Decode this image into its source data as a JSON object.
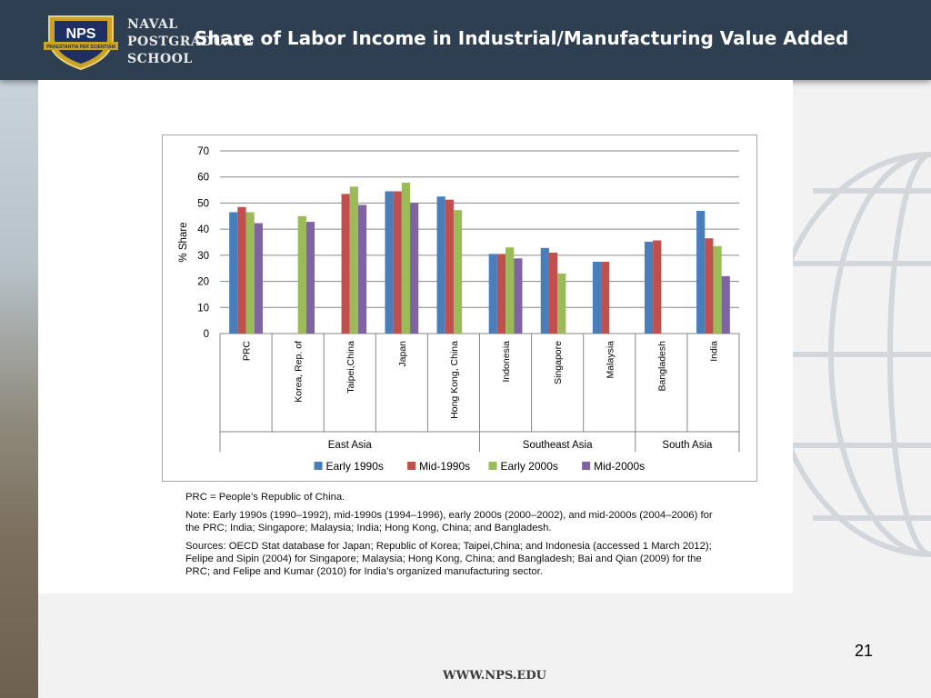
{
  "header": {
    "logo_text": "NPS",
    "motto": "PRAESTANTIA PER SCIENTIAM",
    "org_lines": [
      "NAVAL",
      "POSTGRADUATE",
      "SCHOOL"
    ],
    "title": "Share of Labor Income in Industrial/Manufacturing Value Added"
  },
  "chart_data": {
    "type": "bar",
    "ylabel": "% Share",
    "ylim": [
      0,
      70
    ],
    "yticks": [
      0,
      10,
      20,
      30,
      40,
      50,
      60,
      70
    ],
    "grid": true,
    "legend_position": "bottom",
    "categories": [
      "PRC",
      "Korea, Rep. of",
      "Taipei,China",
      "Japan",
      "Hong Kong, China",
      "Indonesia",
      "Singapore",
      "Malaysia",
      "Bangladesh",
      "India"
    ],
    "groups": [
      {
        "name": "East Asia",
        "start": 0,
        "end": 4
      },
      {
        "name": "Southeast Asia",
        "start": 5,
        "end": 7
      },
      {
        "name": "South Asia",
        "start": 8,
        "end": 9
      }
    ],
    "series": [
      {
        "name": "Early 1990s",
        "color": "#4a7ebb",
        "values": [
          46.5,
          null,
          null,
          54.5,
          52.5,
          30.5,
          32.8,
          27.5,
          35.2,
          47
        ]
      },
      {
        "name": "Mid-1990s",
        "color": "#c0504d",
        "values": [
          48.5,
          null,
          53.5,
          54.5,
          51.3,
          30.5,
          31,
          27.5,
          35.7,
          36.5
        ]
      },
      {
        "name": "Early 2000s",
        "color": "#9bbb59",
        "values": [
          46.5,
          45,
          56.3,
          57.8,
          47.3,
          33,
          23,
          null,
          null,
          33.5
        ]
      },
      {
        "name": "Mid-2000s",
        "color": "#8064a2",
        "values": [
          42.3,
          42.8,
          49.3,
          50,
          null,
          28.8,
          null,
          null,
          null,
          22
        ]
      }
    ]
  },
  "notes": {
    "prc": "PRC = People’s Republic of China.",
    "note": "Note: Early 1990s (1990–1992), mid-1990s (1994–1996), early 2000s (2000–2002), and mid-2000s (2004–2006) for the PRC; India; Singapore; Malaysia; India; Hong Kong, China; and Bangladesh.",
    "sources": "Sources: OECD Stat database for Japan; Republic of Korea; Taipei,China; and Indonesia (accessed 1 March 2012); Felipe and Sipin (2004) for Singapore; Malaysia; Hong Kong, China; and Bangladesh; Bai and Qian (2009) for the PRC; and Felipe and Kumar (2010) for India’s organized manufacturing sector."
  },
  "footer": {
    "page_number": "21",
    "url": "WWW.NPS.EDU"
  }
}
